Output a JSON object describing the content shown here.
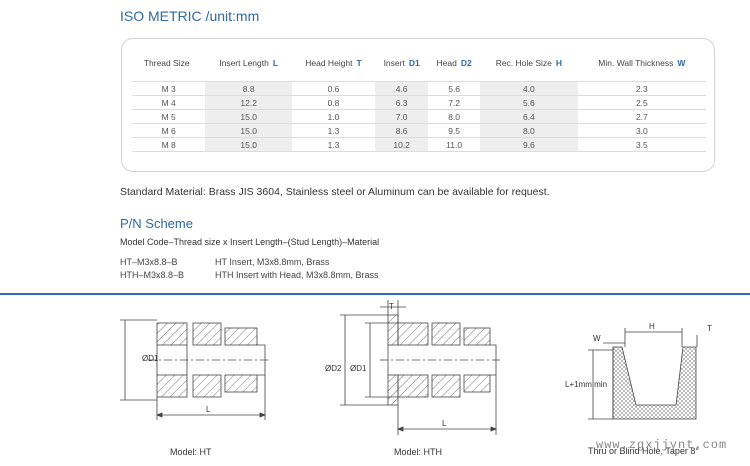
{
  "section_title": "ISO METRIC /unit:mm",
  "table": {
    "headers": [
      {
        "label": "Thread Size",
        "letter": ""
      },
      {
        "label": "Insert Length",
        "letter": "L"
      },
      {
        "label": "Head Height",
        "letter": "T"
      },
      {
        "label": "Insert",
        "letter": "D1"
      },
      {
        "label": "Head",
        "letter": "D2"
      },
      {
        "label": "Rec. Hole Size",
        "letter": "H"
      },
      {
        "label": "Min. Wall Thickness",
        "letter": "W"
      }
    ],
    "rows": [
      [
        "M 3",
        "8.8",
        "0.6",
        "4.6",
        "5.6",
        "4.0",
        "2.3"
      ],
      [
        "M 4",
        "12.2",
        "0.8",
        "6.3",
        "7.2",
        "5.6",
        "2.5"
      ],
      [
        "M 5",
        "15.0",
        "1.0",
        "7.0",
        "8.0",
        "6.4",
        "2.7"
      ],
      [
        "M 6",
        "15.0",
        "1.3",
        "8.6",
        "9.5",
        "8.0",
        "3.0"
      ],
      [
        "M 8",
        "15.0",
        "1.3",
        "10.2",
        "11.0",
        "9.6",
        "3.5"
      ]
    ]
  },
  "material_note": "Standard Material: Brass JIS 3604, Stainless steel or Aluminum can be available for request.",
  "pn": {
    "title": "P/N Scheme",
    "model_code": "Model Code–Thread size x Insert Length–(Stud Length)–Material",
    "examples": [
      {
        "code": "HT–M3x8.8–B",
        "desc": "HT Insert, M3x8.8mm, Brass"
      },
      {
        "code": "HTH–M3x8.8–B",
        "desc": "HTH Insert with Head, M3x8.8mm, Brass"
      }
    ]
  },
  "drawings": {
    "ht": {
      "caption": "Model: HT",
      "d1": "ØD1",
      "l": "L"
    },
    "hth": {
      "caption": "Model: HTH",
      "t": "T",
      "d2": "ØD2",
      "d1": "ØD1",
      "l": "L"
    },
    "hole": {
      "caption": "Thru or Blind Hole, Taper 8°",
      "w": "W",
      "h": "H",
      "t": "T",
      "depth": "L+1mm min"
    }
  },
  "watermark": "www.zgxjjynt.com",
  "colors": {
    "accent": "#2e6aa6",
    "divider": "#2a74ae",
    "shade": "#eeeeee"
  }
}
